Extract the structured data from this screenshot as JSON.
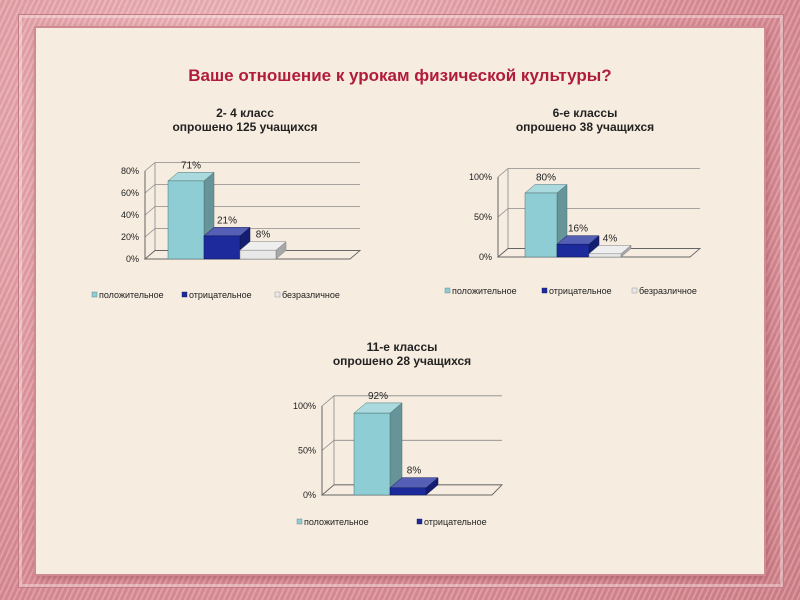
{
  "slide": {
    "title": "Ваше отношение к урокам физической культуры?"
  },
  "colors": {
    "positive": "#8ecdd3",
    "negative": "#1c2a9c",
    "neutral": "#e8e8e8",
    "title": "#b01c3a"
  },
  "chart_data": [
    {
      "type": "bar",
      "title": "2- 4 класс",
      "subtitle": "опрошено 125 учащихся",
      "categories": [
        "положительное",
        "отрицательное",
        "безразличное"
      ],
      "values": [
        71,
        21,
        8
      ],
      "labels": [
        "71%",
        "21%",
        "8%"
      ],
      "y_ticks": [
        "0%",
        "20%",
        "40%",
        "60%",
        "80%"
      ],
      "ylim": [
        0,
        80
      ],
      "legend_position": "bottom"
    },
    {
      "type": "bar",
      "title": "6-е классы",
      "subtitle": "опрошено 38 учащихся",
      "categories": [
        "положительное",
        "отрицательное",
        "безразличное"
      ],
      "values": [
        80,
        16,
        4
      ],
      "labels": [
        "80%",
        "16%",
        "4%"
      ],
      "y_ticks": [
        "0%",
        "50%",
        "100%"
      ],
      "ylim": [
        0,
        100
      ],
      "legend_position": "bottom"
    },
    {
      "type": "bar",
      "title": "11-е классы",
      "subtitle": "опрошено 28 учащихся",
      "categories": [
        "положительное",
        "отрицательное"
      ],
      "values": [
        92,
        8
      ],
      "labels": [
        "92%",
        "8%"
      ],
      "y_ticks": [
        "0%",
        "50%",
        "100%"
      ],
      "ylim": [
        0,
        100
      ],
      "legend_position": "bottom"
    }
  ]
}
